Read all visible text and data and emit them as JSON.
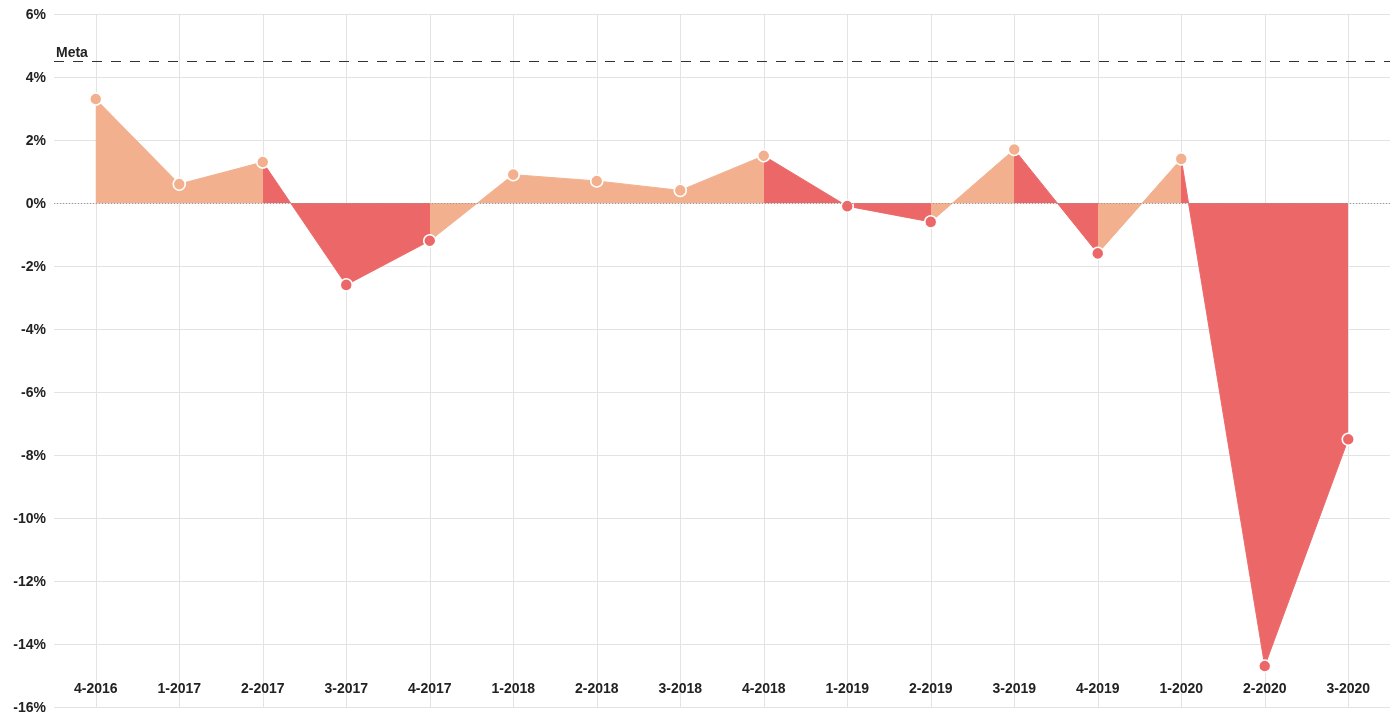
{
  "chart_data": {
    "type": "area",
    "categories": [
      "4-2016",
      "1-2017",
      "2-2017",
      "3-2017",
      "4-2017",
      "1-2018",
      "2-2018",
      "3-2018",
      "4-2018",
      "1-2019",
      "2-2019",
      "3-2019",
      "4-2019",
      "1-2020",
      "2-2020",
      "3-2020"
    ],
    "ylim": [
      -16,
      6
    ],
    "yticks": [
      {
        "value": -16,
        "label": "-16%"
      },
      {
        "value": -14,
        "label": "-14%"
      },
      {
        "value": -12,
        "label": "-12%"
      },
      {
        "value": -10,
        "label": "-10%"
      },
      {
        "value": -8,
        "label": "-8%"
      },
      {
        "value": -6,
        "label": "-6%"
      },
      {
        "value": -4,
        "label": "-4%"
      },
      {
        "value": -2,
        "label": "-2%"
      },
      {
        "value": 0,
        "label": "0%"
      },
      {
        "value": 2,
        "label": "2%"
      },
      {
        "value": 4,
        "label": "4%"
      },
      {
        "value": 6,
        "label": "6%"
      }
    ],
    "grid": true,
    "marker": "circle",
    "series": [
      {
        "values": [
          3.3,
          0.6,
          1.3,
          -2.6,
          -1.2,
          0.9,
          0.7,
          0.4,
          1.5,
          -0.1,
          -0.6,
          1.7,
          -1.6,
          1.4,
          -14.7,
          -7.5
        ],
        "colors": [
          "#f2b08e",
          "#f2b08e",
          "#f2b08e",
          "#ec6868",
          "#ec6868",
          "#f2b08e",
          "#f2b08e",
          "#f2b08e",
          "#f2b08e",
          "#ec6868",
          "#ec6868",
          "#f2b08e",
          "#ec6868",
          "#f2b08e",
          "#ec6868",
          "#ec6868"
        ]
      }
    ],
    "ref_lines": [
      {
        "axis": "y",
        "value": 4.5,
        "label": "Meta",
        "line_style": "dashed",
        "color": "#333333"
      },
      {
        "axis": "y",
        "value": 0,
        "line_style": "dotted",
        "color": "#999999"
      }
    ]
  }
}
